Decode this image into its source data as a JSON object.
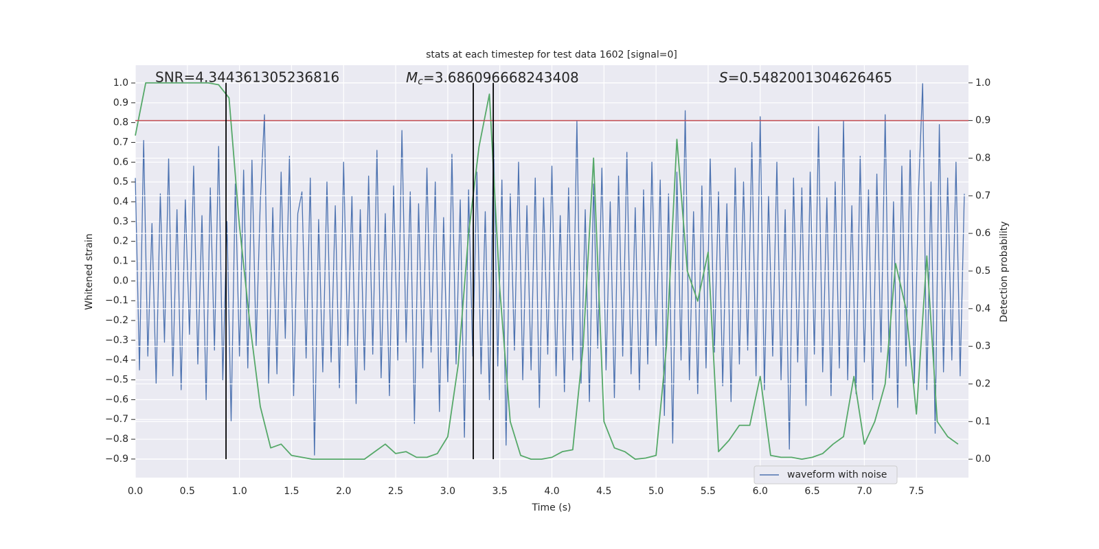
{
  "chart_data": {
    "type": "line",
    "title": "stats at each timestep for test data 1602 [signal=0]",
    "xlabel": "Time (s)",
    "ylabel": "Whitened strain",
    "y2label": "Detection probability",
    "annotations": [
      {
        "text": "SNR=4.344361305236816"
      },
      {
        "symbol": "M",
        "subscript": "c",
        "text": "=3.686096668243408"
      },
      {
        "symbol": "S",
        "text": "=0.5482001304626465"
      }
    ],
    "xlim": [
      0,
      8.0
    ],
    "ylim": [
      -0.994,
      1.09
    ],
    "y2lim": [
      -0.049,
      1.047
    ],
    "xticks": [
      {
        "value": 0,
        "label": "0.0"
      },
      0.5,
      {
        "value": 1,
        "label": "1.0"
      },
      1.5,
      {
        "value": 2,
        "label": "2.0"
      },
      2.5,
      {
        "value": 3,
        "label": "3.0"
      },
      3.5,
      {
        "value": 4,
        "label": "4.0"
      },
      4.5,
      {
        "value": 5,
        "label": "5.0"
      },
      5.5,
      {
        "value": 6,
        "label": "6.0"
      },
      6.5,
      {
        "value": 7,
        "label": "7.0"
      },
      7.5
    ],
    "yticks": [
      {
        "value": -0.9,
        "label": "−0.9"
      },
      {
        "value": -0.8,
        "label": "−0.8"
      },
      {
        "value": -0.7,
        "label": "−0.7"
      },
      {
        "value": -0.6,
        "label": "−0.6"
      },
      {
        "value": -0.5,
        "label": "−0.5"
      },
      {
        "value": -0.4,
        "label": "−0.4"
      },
      {
        "value": -0.3,
        "label": "−0.3"
      },
      {
        "value": -0.2,
        "label": "−0.2"
      },
      {
        "value": -0.1,
        "label": "−0.1"
      },
      {
        "value": 0,
        "label": "0.0"
      },
      0.1,
      0.2,
      0.3,
      0.4,
      0.5,
      0.6,
      0.7,
      0.8,
      0.9,
      {
        "value": 1,
        "label": "1.0"
      }
    ],
    "y2ticks": [
      {
        "value": 0,
        "label": "0.0"
      },
      0.1,
      0.2,
      0.3,
      0.4,
      0.5,
      0.6,
      0.7,
      0.8,
      0.9,
      {
        "value": 1,
        "label": "1.0"
      }
    ],
    "grid": true,
    "legend": "lower right",
    "series": [
      {
        "name": "waveform with noise",
        "color": "#4c72b0",
        "x": [
          0,
          0.04,
          0.08,
          0.12,
          0.16,
          0.2,
          0.24,
          0.28,
          0.32,
          0.36,
          0.4,
          0.44,
          0.48,
          0.52,
          0.56,
          0.6,
          0.64,
          0.68,
          0.72,
          0.76,
          0.8,
          0.84,
          0.88,
          0.92,
          0.96,
          1,
          1.04,
          1.08,
          1.12,
          1.16,
          1.2,
          1.24,
          1.28,
          1.32,
          1.36,
          1.4,
          1.44,
          1.48,
          1.52,
          1.56,
          1.6,
          1.64,
          1.68,
          1.72,
          1.76,
          1.8,
          1.84,
          1.88,
          1.92,
          1.96,
          2,
          2.04,
          2.08,
          2.12,
          2.16,
          2.2,
          2.24,
          2.28,
          2.32,
          2.36,
          2.4,
          2.44,
          2.48,
          2.52,
          2.56,
          2.6,
          2.64,
          2.68,
          2.72,
          2.76,
          2.8,
          2.84,
          2.88,
          2.92,
          2.96,
          3,
          3.04,
          3.08,
          3.12,
          3.16,
          3.2,
          3.24,
          3.28,
          3.32,
          3.36,
          3.4,
          3.44,
          3.48,
          3.52,
          3.56,
          3.6,
          3.64,
          3.68,
          3.72,
          3.76,
          3.8,
          3.84,
          3.88,
          3.92,
          3.96,
          4,
          4.04,
          4.08,
          4.12,
          4.16,
          4.2,
          4.24,
          4.28,
          4.32,
          4.36,
          4.4,
          4.44,
          4.48,
          4.52,
          4.56,
          4.6,
          4.64,
          4.68,
          4.72,
          4.76,
          4.8,
          4.84,
          4.88,
          4.92,
          4.96,
          5,
          5.04,
          5.08,
          5.12,
          5.16,
          5.2,
          5.24,
          5.28,
          5.32,
          5.36,
          5.4,
          5.44,
          5.48,
          5.52,
          5.56,
          5.6,
          5.64,
          5.68,
          5.72,
          5.76,
          5.8,
          5.84,
          5.88,
          5.92,
          5.96,
          6,
          6.04,
          6.08,
          6.12,
          6.16,
          6.2,
          6.24,
          6.28,
          6.32,
          6.36,
          6.4,
          6.44,
          6.48,
          6.52,
          6.56,
          6.6,
          6.64,
          6.68,
          6.72,
          6.76,
          6.8,
          6.84,
          6.88,
          6.92,
          6.96,
          7,
          7.04,
          7.08,
          7.12,
          7.16,
          7.2,
          7.24,
          7.28,
          7.32,
          7.36,
          7.4,
          7.44,
          7.48,
          7.52,
          7.56,
          7.6,
          7.64,
          7.68,
          7.72,
          7.76,
          7.8,
          7.84,
          7.88,
          7.92,
          7.96
        ],
        "values": [
          0.52,
          -0.45,
          0.71,
          -0.38,
          0.29,
          -0.52,
          0.44,
          -0.31,
          0.62,
          -0.48,
          0.36,
          -0.55,
          0.41,
          -0.27,
          0.58,
          -0.42,
          0.33,
          -0.6,
          0.47,
          -0.35,
          0.68,
          -0.5,
          0.3,
          -0.71,
          0.49,
          -0.38,
          0.56,
          -0.44,
          0.61,
          -0.33,
          0.4,
          0.84,
          -0.52,
          0.37,
          -0.47,
          0.55,
          -0.29,
          0.63,
          -0.58,
          0.34,
          0.45,
          -0.39,
          0.52,
          -0.88,
          0.31,
          -0.46,
          0.5,
          -0.41,
          0.38,
          -0.54,
          0.6,
          -0.33,
          0.43,
          -0.62,
          0.36,
          -0.45,
          0.53,
          -0.37,
          0.66,
          -0.49,
          0.34,
          -0.58,
          0.48,
          -0.4,
          0.76,
          -0.31,
          0.45,
          -0.72,
          0.39,
          -0.44,
          0.57,
          -0.36,
          0.5,
          -0.66,
          0.32,
          -0.51,
          0.64,
          -0.42,
          0.41,
          -0.79,
          0.46,
          -0.38,
          0.55,
          -0.47,
          0.35,
          -0.6,
          0.7,
          -0.43,
          0.51,
          -0.83,
          0.44,
          -0.35,
          0.6,
          -0.5,
          0.38,
          -0.45,
          0.52,
          -0.64,
          0.42,
          -0.37,
          0.58,
          -0.48,
          0.33,
          -0.56,
          0.47,
          -0.4,
          0.81,
          -0.52,
          0.36,
          -0.61,
          0.49,
          -0.34,
          0.57,
          -0.45,
          0.4,
          -0.59,
          0.53,
          -0.38,
          0.65,
          -0.47,
          0.37,
          -0.55,
          0.46,
          -0.42,
          0.6,
          -0.33,
          0.51,
          -0.68,
          0.44,
          -0.82,
          0.55,
          -0.4,
          0.86,
          -0.5,
          0.35,
          -0.57,
          0.48,
          -0.44,
          0.62,
          -0.36,
          0.45,
          -0.53,
          0.39,
          -0.61,
          0.57,
          -0.42,
          0.5,
          -0.35,
          0.7,
          -0.48,
          0.83,
          -0.55,
          0.43,
          -0.38,
          0.6,
          -0.5,
          0.36,
          -0.85,
          0.52,
          -0.41,
          0.47,
          -0.63,
          0.55,
          -0.37,
          0.78,
          -0.46,
          0.42,
          -0.58,
          0.5,
          -0.44,
          0.81,
          -0.5,
          0.38,
          -0.57,
          0.63,
          -0.41,
          0.46,
          -0.6,
          0.54,
          -0.36,
          0.84,
          -0.49,
          0.4,
          -0.64,
          0.58,
          -0.43,
          0.66,
          -0.52,
          0.45,
          1.0,
          -0.55,
          0.5,
          -0.77,
          0.79,
          -0.46,
          0.52,
          -0.4,
          0.6,
          -0.48,
          0.44
        ]
      },
      {
        "color": "#55a868",
        "axis": "y2",
        "x": [
          0,
          0.1,
          0.2,
          0.3,
          0.4,
          0.5,
          0.6,
          0.7,
          0.8,
          0.9,
          1,
          1.1,
          1.2,
          1.3,
          1.4,
          1.5,
          1.6,
          1.7,
          1.8,
          1.9,
          2,
          2.1,
          2.2,
          2.3,
          2.4,
          2.5,
          2.6,
          2.7,
          2.8,
          2.9,
          3,
          3.1,
          3.2,
          3.3,
          3.4,
          3.5,
          3.6,
          3.7,
          3.8,
          3.9,
          4,
          4.1,
          4.2,
          4.3,
          4.4,
          4.5,
          4.6,
          4.7,
          4.8,
          4.9,
          5,
          5.1,
          5.2,
          5.3,
          5.4,
          5.5,
          5.6,
          5.7,
          5.8,
          5.9,
          6,
          6.1,
          6.2,
          6.3,
          6.4,
          6.5,
          6.6,
          6.7,
          6.8,
          6.9,
          7,
          7.1,
          7.2,
          7.3,
          7.4,
          7.5,
          7.6,
          7.7,
          7.8,
          7.9
        ],
        "values": [
          0.86,
          1.0,
          1.0,
          1.0,
          1.0,
          1.0,
          1.0,
          1.0,
          0.995,
          0.96,
          0.62,
          0.36,
          0.14,
          0.03,
          0.04,
          0.01,
          0.005,
          0.0,
          0.0,
          0.0,
          0.0,
          0.0,
          0.0,
          0.02,
          0.04,
          0.015,
          0.02,
          0.005,
          0.005,
          0.015,
          0.06,
          0.25,
          0.6,
          0.83,
          0.97,
          0.45,
          0.1,
          0.01,
          0.0,
          0.0,
          0.005,
          0.02,
          0.025,
          0.3,
          0.8,
          0.1,
          0.03,
          0.02,
          0.0,
          0.003,
          0.01,
          0.3,
          0.85,
          0.5,
          0.42,
          0.55,
          0.02,
          0.05,
          0.09,
          0.09,
          0.22,
          0.01,
          0.005,
          0.005,
          0.0,
          0.005,
          0.015,
          0.04,
          0.06,
          0.22,
          0.04,
          0.1,
          0.2,
          0.52,
          0.4,
          0.12,
          0.54,
          0.1,
          0.06,
          0.04
        ]
      }
    ],
    "hlines": [
      {
        "y": 0.9,
        "axis": "y2",
        "color": "#c44e52"
      }
    ],
    "vlines": {
      "x": [
        0.871,
        3.245,
        3.437
      ],
      "ymin": 0,
      "ymax": 1,
      "axis": "y2",
      "color": "#000000"
    }
  }
}
